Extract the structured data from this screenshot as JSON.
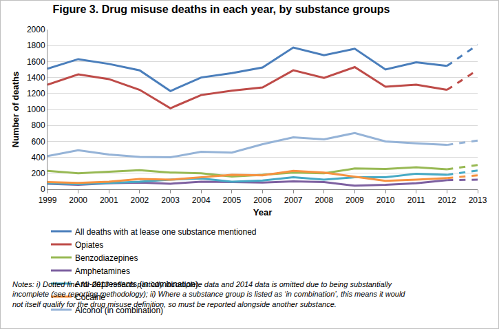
{
  "chart_data": {
    "type": "line",
    "title": "Figure 3. Drug misuse deaths in each year, by substance groups",
    "x_label": "Year",
    "y_label": "Number of deaths",
    "categories": [
      "1999",
      "2000",
      "2001",
      "2002",
      "2003",
      "2004",
      "2005",
      "2006",
      "2007",
      "2008",
      "2009",
      "2010",
      "2011",
      "2012",
      "2013"
    ],
    "ylim": [
      0,
      2000
    ],
    "yticks": [
      0,
      200,
      400,
      600,
      800,
      1000,
      1200,
      1400,
      1600,
      1800,
      2000
    ],
    "grid": true,
    "legend": "bottom",
    "series": [
      {
        "name": "All deaths with at lease one substance mentioned",
        "color": "#4A7EBB",
        "line_style": "solid",
        "values": [
          1510,
          1630,
          1570,
          1490,
          1230,
          1400,
          1455,
          1525,
          1775,
          1680,
          1760,
          1500,
          1590,
          1545,
          1810
        ]
      },
      {
        "name": "Opiates",
        "color": "#BE4B48",
        "line_style": "solid",
        "values": [
          1310,
          1440,
          1380,
          1245,
          1015,
          1180,
          1235,
          1275,
          1490,
          1395,
          1530,
          1285,
          1310,
          1245,
          1495
        ]
      },
      {
        "name": "Benzodiazepines",
        "color": "#98B954",
        "line_style": "solid",
        "values": [
          230,
          200,
          220,
          240,
          210,
          200,
          160,
          180,
          210,
          200,
          260,
          255,
          275,
          250,
          305
        ]
      },
      {
        "name": "Amphetamines",
        "color": "#7D60A0",
        "line_style": "solid",
        "values": [
          70,
          55,
          75,
          85,
          70,
          95,
          90,
          85,
          100,
          90,
          45,
          55,
          75,
          115,
          120
        ]
      },
      {
        "name": "Anti-depressants (in combination)",
        "color": "#46AAC5",
        "line_style": "solid",
        "values": [
          75,
          65,
          80,
          95,
          120,
          135,
          95,
          110,
          150,
          120,
          150,
          150,
          195,
          180,
          235
        ]
      },
      {
        "name": "Cocaine",
        "color": "#F69240",
        "line_style": "solid",
        "values": [
          90,
          80,
          95,
          130,
          120,
          150,
          180,
          175,
          230,
          210,
          155,
          105,
          120,
          140,
          175
        ]
      },
      {
        "name": "Alcohol (in combination)",
        "color": "#95B3D7",
        "line_style": "solid",
        "values": [
          415,
          490,
          435,
          405,
          400,
          470,
          460,
          565,
          650,
          625,
          705,
          600,
          575,
          555,
          610
        ]
      }
    ],
    "notes": [
      "Notes: i) Dotted line for 2013 reflects partially incomplete data and 2014 data is omitted due to being substantially",
      "incomplete (see reporting methodology); ii) Where a substance group is listed as ‘in combination’, this means it would",
      "not itself qualify for the drug misuse definition, so must be reported alongside another substance."
    ]
  }
}
